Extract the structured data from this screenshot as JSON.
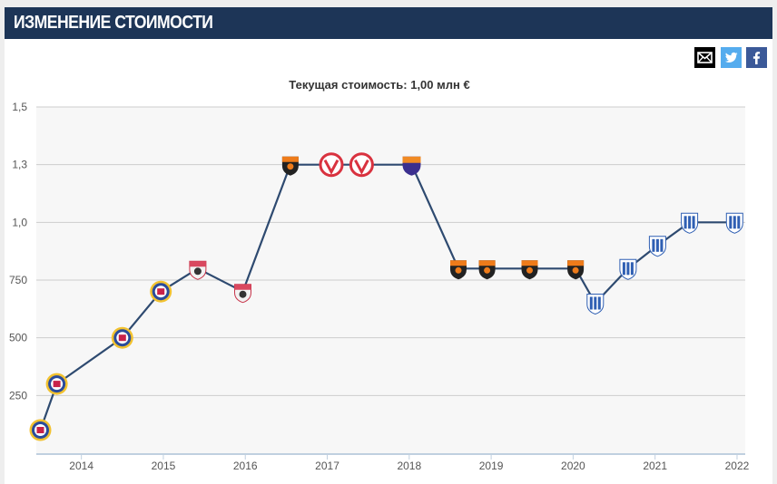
{
  "header": {
    "title": "ИЗМЕНЕНИЕ СТОИМОСТИ"
  },
  "share": [
    {
      "name": "mail-icon",
      "color": "#000000"
    },
    {
      "name": "twitter-icon",
      "color": "#55acee"
    },
    {
      "name": "facebook-icon",
      "color": "#3b5998"
    }
  ],
  "colors": {
    "header_bg": "#1d3557",
    "line": "#2e4a70",
    "plot_bg": "#f7f7f7",
    "grid": "#cccccc",
    "axis": "#c0d0e0"
  },
  "chart_data": {
    "type": "line",
    "title": "Текущая стоимость: 1,00 млн €",
    "x_tick_labels": [
      "2014",
      "2015",
      "2016",
      "2017",
      "2018",
      "2019",
      "2020",
      "2021",
      "2022"
    ],
    "y_tick_labels": [
      "1,5",
      "1,3",
      "1,0",
      "750",
      "500",
      "250"
    ],
    "ylim": [
      0,
      1.5
    ],
    "xlim": [
      2013.45,
      2022.1
    ],
    "grid": true,
    "legend": "none",
    "series": [
      {
        "points": [
          {
            "x": 2013.5,
            "y": 0.1,
            "club": "blue-yellow-crest"
          },
          {
            "x": 2013.7,
            "y": 0.3,
            "club": "blue-yellow-crest"
          },
          {
            "x": 2014.5,
            "y": 0.5,
            "club": "blue-yellow-crest"
          },
          {
            "x": 2014.97,
            "y": 0.7,
            "club": "blue-yellow-crest"
          },
          {
            "x": 2015.42,
            "y": 0.8,
            "club": "red-white-crest"
          },
          {
            "x": 2015.97,
            "y": 0.7,
            "club": "red-white-crest"
          },
          {
            "x": 2016.55,
            "y": 1.25,
            "club": "orange-black-crest"
          },
          {
            "x": 2017.05,
            "y": 1.25,
            "club": "red-ring-crest"
          },
          {
            "x": 2017.42,
            "y": 1.25,
            "club": "red-ring-crest"
          },
          {
            "x": 2018.03,
            "y": 1.25,
            "club": "orange-purple-crest"
          },
          {
            "x": 2018.6,
            "y": 0.8,
            "club": "orange-black-crest"
          },
          {
            "x": 2018.95,
            "y": 0.8,
            "club": "orange-black-crest"
          },
          {
            "x": 2019.47,
            "y": 0.8,
            "club": "orange-black-crest"
          },
          {
            "x": 2020.03,
            "y": 0.8,
            "club": "orange-black-crest"
          },
          {
            "x": 2020.27,
            "y": 0.65,
            "club": "blue-white-crest"
          },
          {
            "x": 2020.67,
            "y": 0.8,
            "club": "blue-white-crest"
          },
          {
            "x": 2021.03,
            "y": 0.9,
            "club": "blue-white-crest"
          },
          {
            "x": 2021.42,
            "y": 1.0,
            "club": "blue-white-crest"
          },
          {
            "x": 2021.97,
            "y": 1.0,
            "club": "blue-white-crest"
          }
        ]
      }
    ]
  }
}
